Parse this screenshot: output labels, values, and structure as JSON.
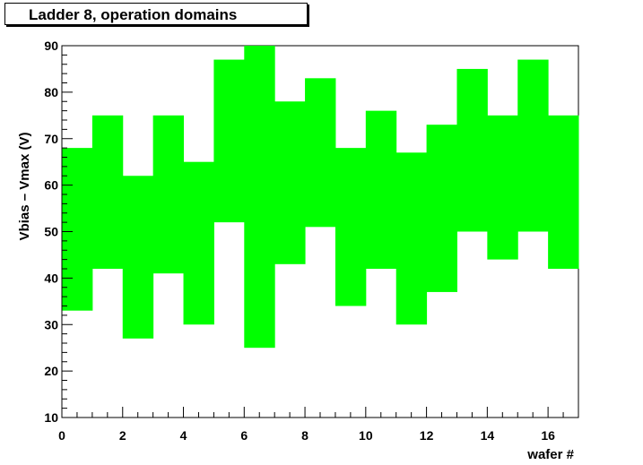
{
  "chart_data": {
    "type": "bar",
    "title": "Ladder  8, operation domains",
    "xlabel": "wafer #",
    "ylabel": "Vbias – Vmax (V)",
    "xlim": [
      0,
      17
    ],
    "ylim": [
      10,
      90
    ],
    "xticks": [
      0,
      2,
      4,
      6,
      8,
      10,
      12,
      14,
      16
    ],
    "yticks": [
      10,
      20,
      30,
      40,
      50,
      60,
      70,
      80,
      90
    ],
    "fill_color": "#00ff00",
    "series": [
      {
        "x": [
          0,
          1,
          2,
          3,
          4,
          5,
          6,
          7,
          8,
          9,
          10,
          11,
          12,
          13,
          14,
          15,
          16
        ],
        "low": [
          33,
          42,
          27,
          41,
          30,
          52,
          25,
          43,
          51,
          34,
          42,
          30,
          37,
          50,
          44,
          50,
          42
        ],
        "high": [
          68,
          75,
          62,
          75,
          65,
          87,
          90,
          78,
          83,
          68,
          76,
          67,
          73,
          85,
          75,
          87,
          75
        ]
      }
    ]
  }
}
